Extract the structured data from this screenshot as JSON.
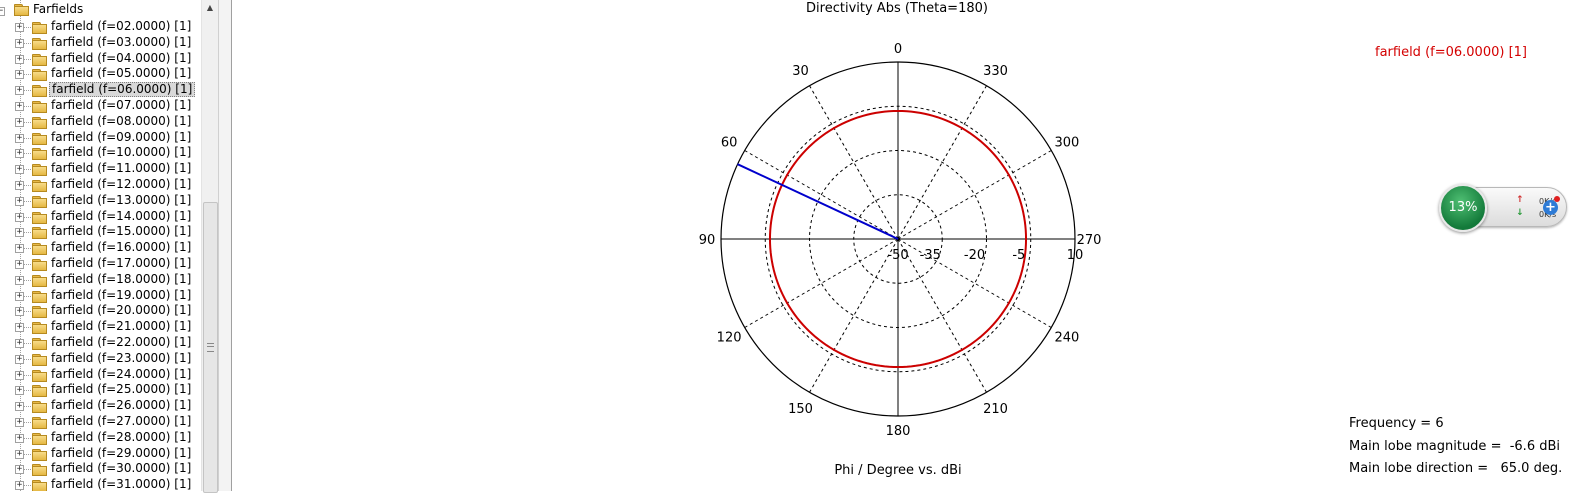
{
  "tree": {
    "root_label": "Farfields",
    "items": [
      "farfield (f=02.0000) [1]",
      "farfield (f=03.0000) [1]",
      "farfield (f=04.0000) [1]",
      "farfield (f=05.0000) [1]",
      "farfield (f=06.0000) [1]",
      "farfield (f=07.0000) [1]",
      "farfield (f=08.0000) [1]",
      "farfield (f=09.0000) [1]",
      "farfield (f=10.0000) [1]",
      "farfield (f=11.0000) [1]",
      "farfield (f=12.0000) [1]",
      "farfield (f=13.0000) [1]",
      "farfield (f=14.0000) [1]",
      "farfield (f=15.0000) [1]",
      "farfield (f=16.0000) [1]",
      "farfield (f=17.0000) [1]",
      "farfield (f=18.0000) [1]",
      "farfield (f=19.0000) [1]",
      "farfield (f=20.0000) [1]",
      "farfield (f=21.0000) [1]",
      "farfield (f=22.0000) [1]",
      "farfield (f=23.0000) [1]",
      "farfield (f=24.0000) [1]",
      "farfield (f=25.0000) [1]",
      "farfield (f=26.0000) [1]",
      "farfield (f=27.0000) [1]",
      "farfield (f=28.0000) [1]",
      "farfield (f=29.0000) [1]",
      "farfield (f=30.0000) [1]",
      "farfield (f=31.0000) [1]"
    ],
    "selected_index": 4
  },
  "plot": {
    "title": "Directivity Abs (Theta=180)",
    "xlabel": "Phi / Degree vs. dBi",
    "legend_label": "farfield (f=06.0000) [1]",
    "info": {
      "frequency": "Frequency = 6",
      "main_lobe_magnitude": "Main lobe magnitude =  -6.6 dBi",
      "main_lobe_direction": "Main lobe direction =   65.0 deg."
    }
  },
  "chart_data": {
    "type": "polar",
    "title": "Directivity Abs (Theta=180)",
    "xlabel": "Phi / Degree vs. dBi",
    "angle_tick_labels": [
      "0",
      "30",
      "60",
      "90",
      "120",
      "150",
      "180",
      "210",
      "240",
      "270",
      "300",
      "330"
    ],
    "radial_tick_labels": [
      "-50",
      "-35",
      "-20",
      "-5",
      "10"
    ],
    "radial_range": [
      -50,
      10
    ],
    "angle_direction": "counterclockwise",
    "zero_location": "top",
    "series": [
      {
        "name": "farfield (f=06.0000) [1]",
        "color": "#cc0000",
        "phi": [
          0,
          30,
          60,
          90,
          120,
          150,
          180,
          210,
          240,
          270,
          300,
          330,
          360
        ],
        "values": [
          -6.6,
          -6.6,
          -6.6,
          -6.6,
          -6.6,
          -6.6,
          -6.6,
          -6.6,
          -6.6,
          -6.6,
          -6.6,
          -6.6,
          -6.6
        ]
      }
    ],
    "main_lobe": {
      "direction_deg": 65.0,
      "magnitude_dbi": -6.6,
      "color": "#0000cc"
    },
    "reference_circle_db": -5,
    "grid": true
  },
  "net_meter": {
    "cpu_percent": "13%",
    "upload": "0K/s",
    "download": "0K/s"
  }
}
